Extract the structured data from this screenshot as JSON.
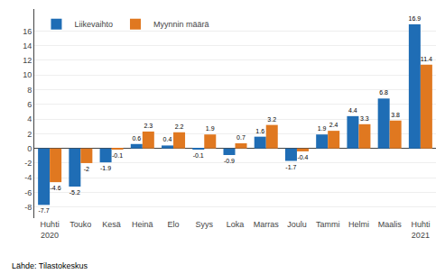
{
  "chart_data": {
    "type": "bar",
    "categories": [
      "Huhti\n2020",
      "Touko",
      "Kesä",
      "Heinä",
      "Elo",
      "Syys",
      "Loka",
      "Marras",
      "Joulu",
      "Tammi",
      "Helmi",
      "Maalis",
      "Huhti\n2021"
    ],
    "series": [
      {
        "name": "Liikevaihto",
        "color": "#1f6db5",
        "values": [
          -7.7,
          -5.2,
          -1.9,
          0.6,
          0.4,
          -0.1,
          -0.9,
          1.6,
          -1.7,
          1.9,
          4.4,
          6.8,
          16.9
        ]
      },
      {
        "name": "Myynnin määrä",
        "color": "#e07820",
        "values": [
          -4.6,
          -2.0,
          -0.1,
          2.3,
          2.2,
          1.9,
          0.7,
          3.2,
          -0.4,
          2.4,
          3.3,
          3.8,
          11.4
        ]
      }
    ],
    "ylim": [
      -9.5,
      19.0
    ],
    "yticks": [
      -8,
      -6,
      -4,
      -2,
      0,
      2,
      4,
      6,
      8,
      10,
      12,
      14,
      16
    ],
    "grid": true,
    "legend": "upper left",
    "data_labels": true,
    "annotations": [
      "Lähde: Tilastokeskus"
    ]
  }
}
